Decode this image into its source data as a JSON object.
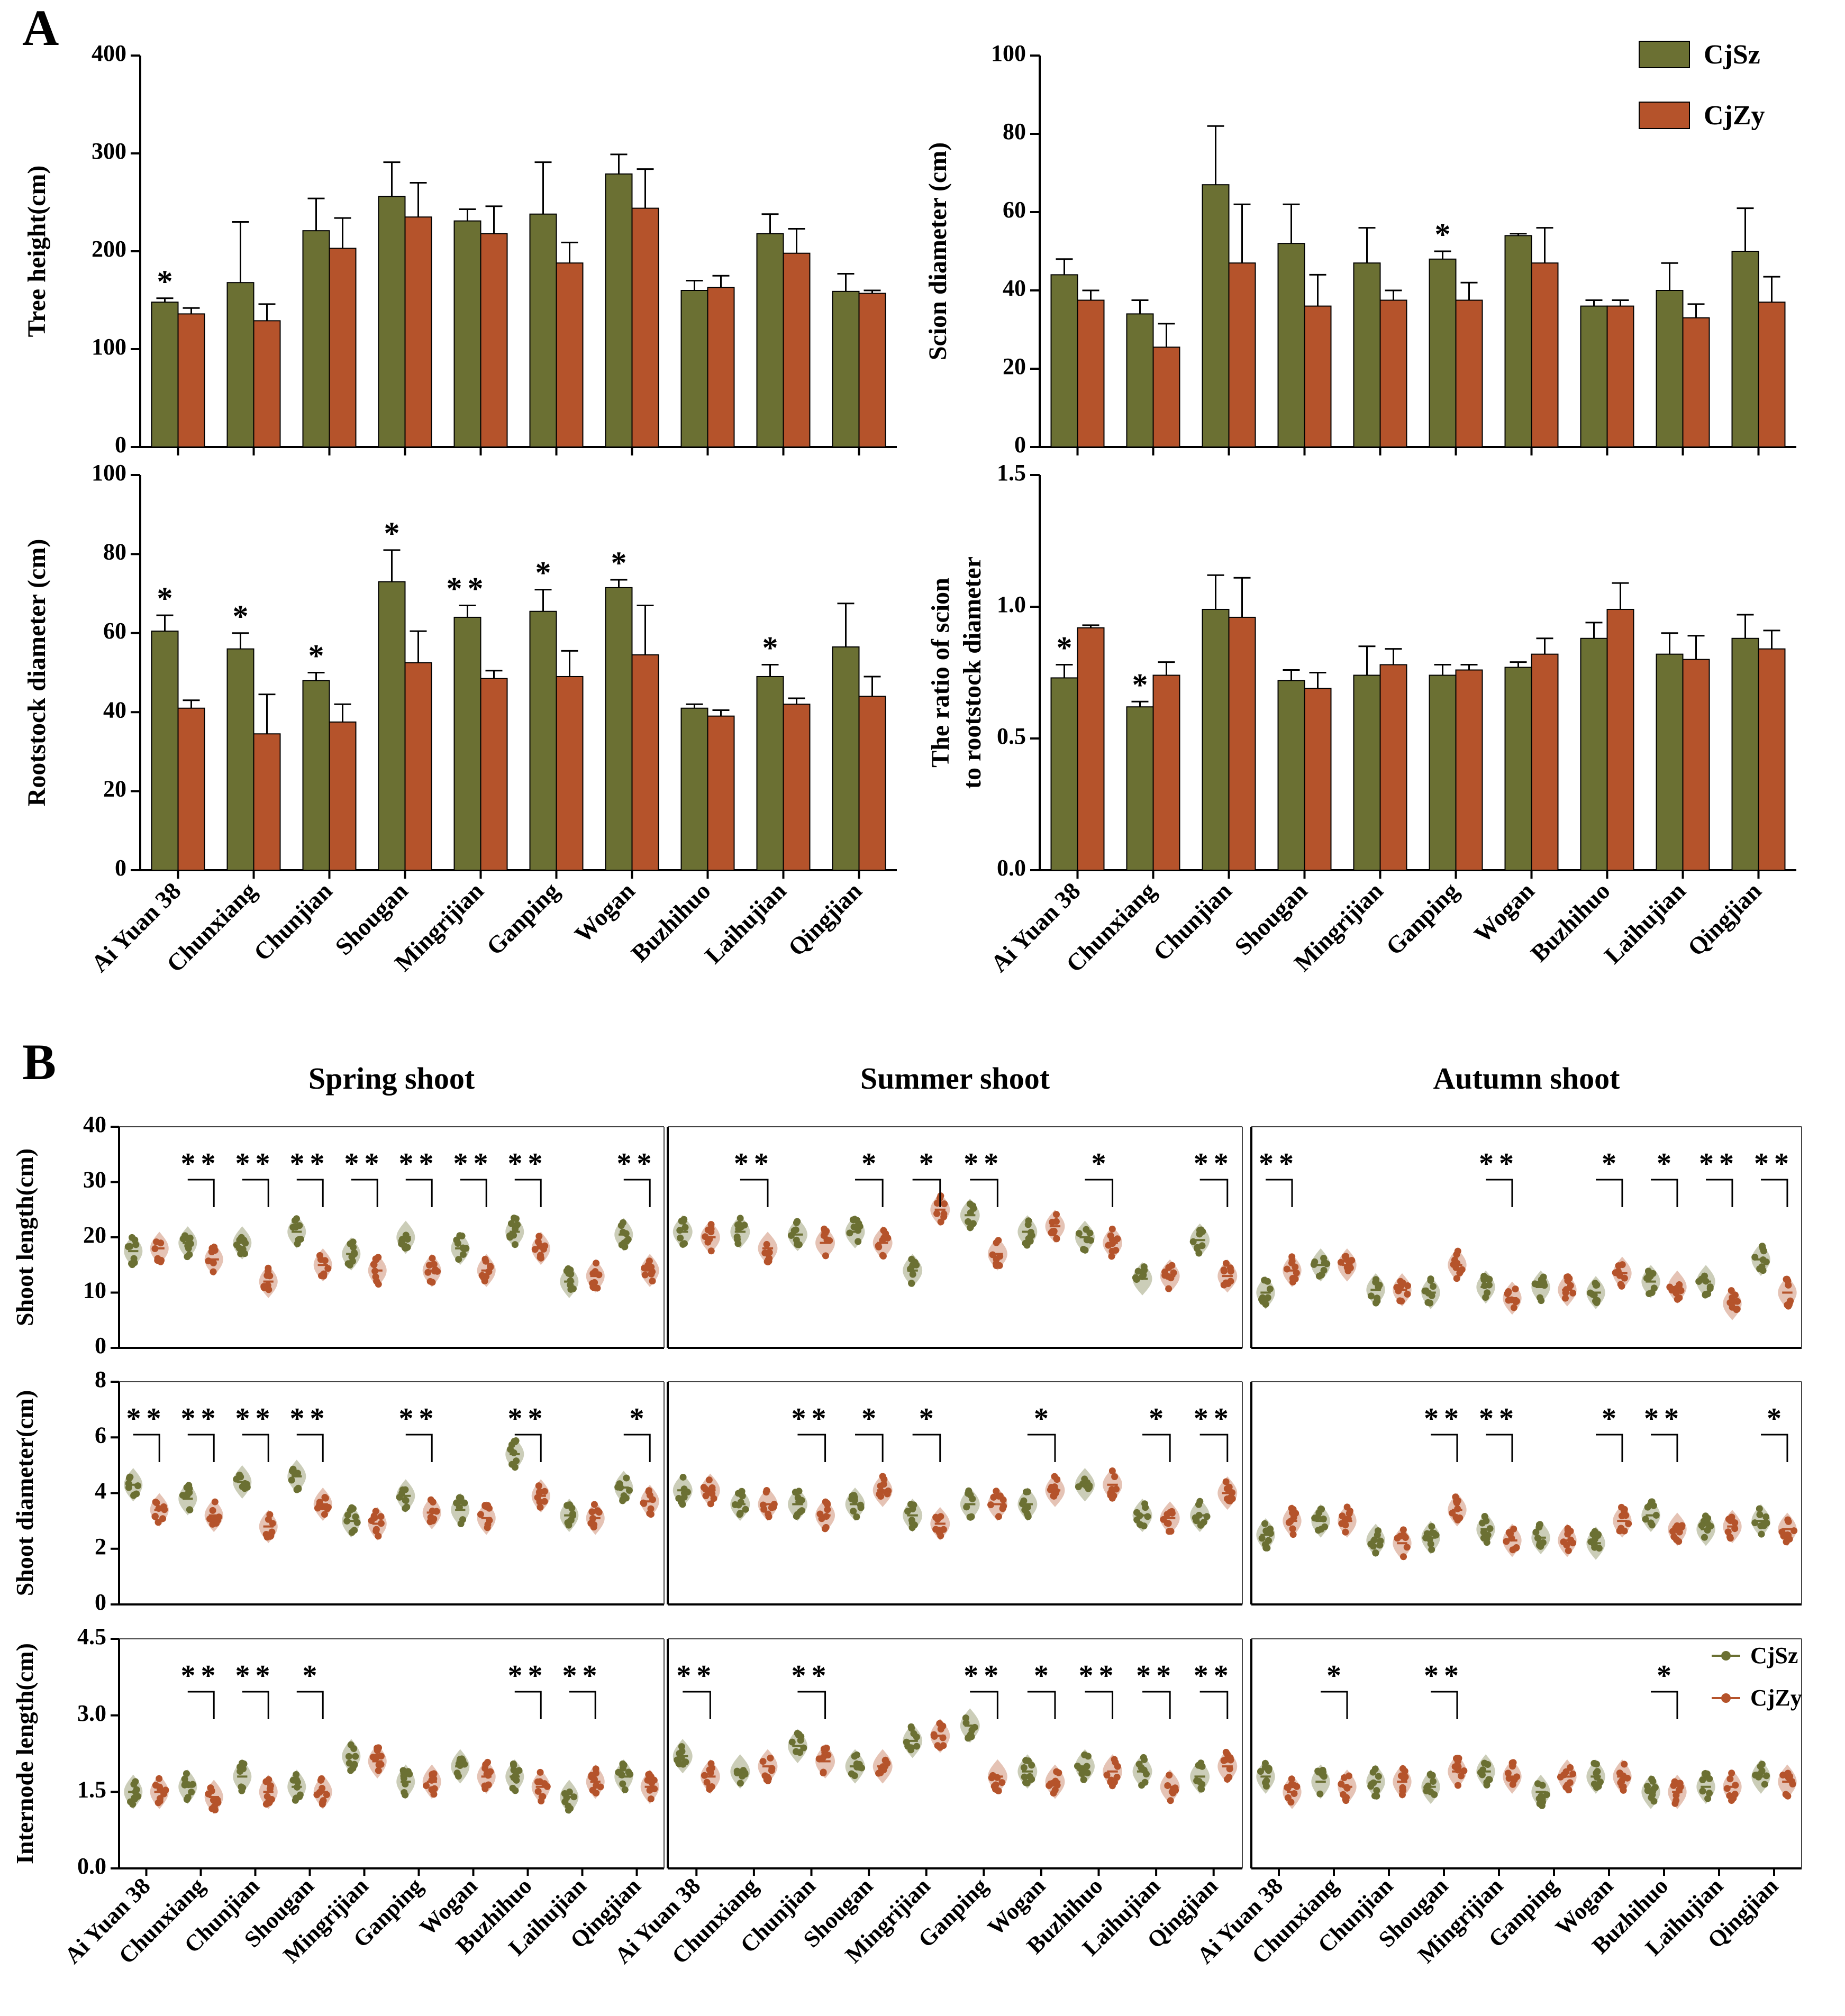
{
  "colors": {
    "cjsz": "#6b7033",
    "cjzy": "#b5532b",
    "axis": "#000000"
  },
  "panel_letters": [
    "A",
    "B"
  ],
  "legend": {
    "series": [
      "CjSz",
      "CjZy"
    ]
  },
  "varieties": [
    "Ai Yuan 38",
    "Chunxiang",
    "Chunjian",
    "Shougan",
    "Mingrijian",
    "Ganping",
    "Wogan",
    "Buzhihuo",
    "Laihujian",
    "Qingjian"
  ],
  "chart_data": [
    {
      "id": "A1",
      "type": "bar",
      "ylabel": "Tree height(cm)",
      "ylim": [
        0,
        400
      ],
      "yticks": [
        0,
        100,
        200,
        300,
        400
      ],
      "series": [
        {
          "name": "CjSz",
          "values": [
            148,
            168,
            221,
            256,
            231,
            238,
            279,
            160,
            218,
            159
          ],
          "err": [
            4,
            62,
            33,
            35,
            12,
            53,
            20,
            10,
            20,
            18
          ]
        },
        {
          "name": "CjZy",
          "values": [
            136,
            129,
            203,
            235,
            218,
            188,
            244,
            163,
            198,
            157
          ],
          "err": [
            6,
            17,
            31,
            35,
            28,
            21,
            40,
            12,
            25,
            3
          ]
        }
      ],
      "sig": [
        "*",
        "",
        "",
        "",
        "",
        "",
        "",
        "",
        "",
        ""
      ]
    },
    {
      "id": "A2",
      "type": "bar",
      "ylabel": "Scion  diameter (cm)",
      "ylim": [
        0,
        100
      ],
      "yticks": [
        0,
        20,
        40,
        60,
        80,
        100
      ],
      "series": [
        {
          "name": "CjSz",
          "values": [
            44,
            34,
            67,
            52,
            47,
            48,
            54,
            36,
            40,
            50
          ],
          "err": [
            4,
            3.5,
            15,
            10,
            9,
            2,
            0.5,
            1.5,
            7,
            11
          ]
        },
        {
          "name": "CjZy",
          "values": [
            37.5,
            25.5,
            47,
            36,
            37.5,
            37.5,
            47,
            36,
            33,
            37
          ],
          "err": [
            2.5,
            6,
            15,
            8,
            2.5,
            4.5,
            9,
            1.5,
            3.5,
            6.5
          ]
        }
      ],
      "sig": [
        "",
        "",
        "",
        "",
        "",
        "*",
        "",
        "",
        "",
        ""
      ]
    },
    {
      "id": "A3",
      "type": "bar",
      "ylabel": "Rootstock diameter (cm)",
      "ylim": [
        0,
        100
      ],
      "yticks": [
        0,
        20,
        40,
        60,
        80,
        100
      ],
      "series": [
        {
          "name": "CjSz",
          "values": [
            60.5,
            56,
            48,
            73,
            64,
            65.5,
            71.5,
            41,
            49,
            56.5
          ],
          "err": [
            4,
            4,
            2,
            8,
            3,
            5.5,
            2,
            1,
            3,
            11
          ]
        },
        {
          "name": "CjZy",
          "values": [
            41,
            34.5,
            37.5,
            52.5,
            48.5,
            49,
            54.5,
            39,
            42,
            44
          ],
          "err": [
            2,
            10,
            4.5,
            8,
            2,
            6.5,
            12.5,
            1.5,
            1.5,
            5
          ]
        }
      ],
      "sig": [
        "*",
        "*",
        "*",
        "*",
        "**",
        "*",
        "*",
        "",
        "*",
        ""
      ]
    },
    {
      "id": "A4",
      "type": "bar",
      "ylabel": [
        "The ratio of scion",
        "to rootstock  diameter"
      ],
      "ylim": [
        0,
        1.5
      ],
      "yticks": [
        "0.0",
        "0.5",
        "1.0",
        "1.5"
      ],
      "series": [
        {
          "name": "CjSz",
          "values": [
            0.73,
            0.62,
            0.99,
            0.72,
            0.74,
            0.74,
            0.77,
            0.88,
            0.82,
            0.88
          ],
          "err": [
            0.05,
            0.02,
            0.13,
            0.04,
            0.11,
            0.04,
            0.02,
            0.06,
            0.08,
            0.09
          ]
        },
        {
          "name": "CjZy",
          "values": [
            0.92,
            0.74,
            0.96,
            0.69,
            0.78,
            0.76,
            0.82,
            0.99,
            0.8,
            0.84
          ],
          "err": [
            0.01,
            0.05,
            0.15,
            0.06,
            0.06,
            0.02,
            0.06,
            0.1,
            0.09,
            0.07
          ]
        }
      ],
      "sig": [
        "*",
        "*",
        "",
        "",
        "",
        "",
        "",
        "",
        "",
        ""
      ]
    }
  ],
  "panel_b": {
    "column_titles": [
      "Spring shoot",
      "Summer shoot",
      "Autumn shoot"
    ],
    "row_labels": [
      "Shoot length(cm)",
      "Shoot diameter(cm)",
      "Internode length(cm)"
    ],
    "yaxes": [
      {
        "ylim": [
          0,
          40
        ],
        "yticks": [
          "0",
          "10",
          "20",
          "30",
          "40"
        ]
      },
      {
        "ylim": [
          0,
          8
        ],
        "yticks": [
          "0",
          "2",
          "4",
          "6",
          "8"
        ]
      },
      {
        "ylim": [
          0,
          4.5
        ],
        "yticks": [
          "0.0",
          "1.5",
          "3.0",
          "4.5"
        ]
      }
    ],
    "chart_data": [
      {
        "row": 0,
        "col": 0,
        "type": "violin",
        "cjsz": [
          17.5,
          19,
          19,
          21,
          17,
          20,
          18,
          21,
          12,
          20.5
        ],
        "cjzy": [
          18,
          16,
          12,
          15,
          14,
          14,
          14,
          18,
          13,
          14
        ],
        "sig": [
          "",
          "**",
          "**",
          "**",
          "**",
          "**",
          "**",
          "**",
          "",
          "**"
        ]
      },
      {
        "row": 0,
        "col": 1,
        "type": "violin",
        "cjsz": [
          21,
          21,
          20.5,
          21,
          14,
          24,
          21,
          20,
          12.5,
          19.5
        ],
        "cjzy": [
          20,
          18,
          19,
          19,
          25,
          17,
          22,
          19,
          13,
          13
        ],
        "sig": [
          "",
          "**",
          "",
          "*",
          "*",
          "**",
          "",
          "*",
          "",
          "**"
        ]
      },
      {
        "row": 0,
        "col": 2,
        "type": "violin",
        "cjsz": [
          10,
          15,
          10.5,
          10,
          11,
          11,
          10,
          12,
          12,
          16
        ],
        "cjzy": [
          14,
          15,
          10.5,
          15,
          9,
          10.5,
          13.5,
          11,
          8,
          10
        ],
        "sig": [
          "**",
          "",
          "",
          "",
          "**",
          "",
          "*",
          "*",
          "**",
          "**"
        ]
      },
      {
        "row": 1,
        "col": 0,
        "type": "violin",
        "cjsz": [
          4.3,
          3.8,
          4.4,
          4.6,
          3.0,
          3.9,
          3.4,
          5.4,
          3.2,
          4.2
        ],
        "cjzy": [
          3.4,
          3.2,
          2.8,
          3.6,
          2.9,
          3.3,
          3.1,
          3.9,
          3.1,
          3.7
        ],
        "sig": [
          "**",
          "**",
          "**",
          "**",
          "",
          "**",
          "",
          "**",
          "",
          "*"
        ]
      },
      {
        "row": 1,
        "col": 1,
        "type": "violin",
        "cjsz": [
          4.1,
          3.6,
          3.6,
          3.6,
          3.2,
          3.6,
          3.6,
          4.3,
          3.2,
          3.2
        ],
        "cjzy": [
          4.1,
          3.6,
          3.2,
          4.1,
          2.9,
          3.6,
          4.1,
          4.3,
          3.1,
          4.0
        ],
        "sig": [
          "",
          "",
          "**",
          "*",
          "*",
          "",
          "*",
          "",
          "*",
          "**"
        ]
      },
      {
        "row": 1,
        "col": 2,
        "type": "violin",
        "cjsz": [
          2.5,
          3.0,
          2.3,
          2.4,
          2.7,
          2.4,
          2.2,
          3.2,
          2.7,
          3.0
        ],
        "cjzy": [
          3.0,
          3.0,
          2.2,
          3.4,
          2.3,
          2.3,
          3.0,
          2.7,
          2.8,
          2.7
        ],
        "sig": [
          "",
          "",
          "",
          "**",
          "**",
          "",
          "*",
          "**",
          "",
          "*"
        ]
      },
      {
        "row": 2,
        "col": 0,
        "type": "violin",
        "cjsz": [
          1.5,
          1.6,
          1.8,
          1.6,
          2.2,
          1.7,
          2.0,
          1.8,
          1.4,
          1.8
        ],
        "cjzy": [
          1.5,
          1.4,
          1.5,
          1.5,
          2.1,
          1.7,
          1.8,
          1.6,
          1.7,
          1.6
        ],
        "sig": [
          "",
          "**",
          "**",
          "*",
          "",
          "",
          "",
          "**",
          "**",
          ""
        ]
      },
      {
        "row": 2,
        "col": 1,
        "type": "violin",
        "cjsz": [
          2.2,
          1.9,
          2.4,
          2.0,
          2.5,
          2.8,
          1.9,
          2.0,
          1.9,
          1.8
        ],
        "cjzy": [
          1.8,
          2.0,
          2.1,
          2.0,
          2.6,
          1.8,
          1.7,
          1.9,
          1.6,
          2.0
        ],
        "sig": [
          "**",
          "",
          "**",
          "",
          "",
          "**",
          "*",
          "**",
          "**",
          "**"
        ]
      },
      {
        "row": 2,
        "col": 2,
        "type": "violin",
        "cjsz": [
          1.8,
          1.7,
          1.7,
          1.6,
          1.9,
          1.5,
          1.8,
          1.5,
          1.6,
          1.8
        ],
        "cjzy": [
          1.5,
          1.6,
          1.7,
          1.9,
          1.8,
          1.8,
          1.8,
          1.5,
          1.6,
          1.7
        ],
        "sig": [
          "",
          "*",
          "",
          "**",
          "",
          "",
          "",
          "*",
          "",
          ""
        ]
      }
    ]
  }
}
